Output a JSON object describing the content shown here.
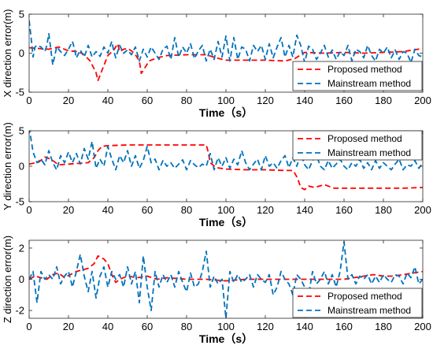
{
  "figure": {
    "colors": {
      "proposed": "#ff0000",
      "mainstream": "#0072bd"
    }
  },
  "chart_data": [
    {
      "type": "line",
      "title": "",
      "xlabel": "Time（s）",
      "ylabel": "X direction error(m)",
      "xlim": [
        0,
        200
      ],
      "ylim": [
        -5,
        5
      ],
      "xticks": [
        0,
        20,
        40,
        60,
        80,
        100,
        120,
        140,
        160,
        180,
        200
      ],
      "yticks": [
        -5,
        0,
        5
      ],
      "legend_location": "bottom-right",
      "series": [
        {
          "name": "Proposed method",
          "x": [
            0,
            5,
            10,
            15,
            20,
            25,
            28,
            31,
            34,
            35,
            37,
            40,
            43,
            45,
            46,
            48,
            50,
            52,
            54,
            56,
            57,
            59,
            61,
            65,
            70,
            80,
            90,
            95,
            100,
            110,
            120,
            130,
            135,
            140,
            150,
            160,
            170,
            180,
            190,
            195,
            200
          ],
          "values": [
            0.7,
            0.6,
            0.5,
            0.8,
            0.3,
            0.2,
            -0.2,
            -1.0,
            -2.5,
            -3.5,
            -2.2,
            -0.3,
            0.4,
            1.2,
            0.2,
            0.5,
            0.6,
            0.3,
            -0.2,
            -1.0,
            -2.6,
            -1.8,
            -1.0,
            -0.6,
            -0.3,
            -0.2,
            -0.2,
            -0.6,
            -0.9,
            -0.9,
            -0.9,
            -1.0,
            -0.7,
            0.1,
            0.0,
            0.1,
            0.0,
            0.1,
            0.2,
            0.4,
            0.6
          ]
        },
        {
          "name": "Mainstream method",
          "x": [
            0,
            1,
            2,
            3,
            4,
            6,
            8,
            9,
            10,
            11,
            12,
            14,
            16,
            18,
            20,
            22,
            23,
            24,
            26,
            28,
            30,
            32,
            34,
            36,
            38,
            40,
            42,
            43,
            44,
            46,
            48,
            50,
            52,
            54,
            56,
            58,
            60,
            62,
            64,
            66,
            68,
            70,
            72,
            74,
            76,
            78,
            80,
            82,
            84,
            86,
            88,
            90,
            92,
            94,
            96,
            98,
            100,
            102,
            104,
            106,
            108,
            110,
            112,
            114,
            116,
            118,
            120,
            122,
            124,
            126,
            128,
            130,
            132,
            134,
            136,
            138,
            140,
            142,
            144,
            146,
            148,
            150,
            152,
            154,
            156,
            158,
            160,
            162,
            164,
            166,
            168,
            170,
            172,
            174,
            176,
            178,
            180,
            182,
            184,
            186,
            188,
            190,
            192,
            194,
            196,
            198,
            200
          ],
          "values": [
            4.2,
            2.0,
            -0.5,
            0.8,
            1.0,
            0.8,
            0.2,
            1.0,
            2.5,
            0.5,
            -1.5,
            0.8,
            0.2,
            -0.3,
            0.5,
            1.5,
            0.6,
            -0.6,
            0.4,
            -0.5,
            1.0,
            -0.5,
            0.2,
            -0.4,
            0.8,
            0.0,
            1.5,
            0.3,
            -0.6,
            1.0,
            0.0,
            0.4,
            -0.2,
            0.8,
            -1.0,
            0.5,
            -0.5,
            0.8,
            0.0,
            -0.8,
            0.5,
            0.9,
            -0.8,
            2.0,
            -0.5,
            0.8,
            0.0,
            1.2,
            -0.7,
            0.3,
            1.0,
            -1.0,
            0.5,
            -0.8,
            1.5,
            -0.5,
            2.2,
            -1.0,
            2.0,
            -0.8,
            0.8,
            0.5,
            -1.0,
            1.0,
            0.2,
            1.0,
            -0.8,
            1.2,
            -0.6,
            0.8,
            2.0,
            -0.5,
            1.0,
            -0.5,
            2.3,
            1.0,
            -1.2,
            0.9,
            0.5,
            -0.8,
            0.0,
            1.0,
            -0.5,
            0.4,
            -0.8,
            0.2,
            -0.3,
            1.0,
            -1.0,
            0.5,
            0.2,
            -0.6,
            1.0,
            -0.3,
            -1.0,
            0.5,
            0.0,
            0.8,
            -0.6,
            0.4,
            -0.8,
            0.2,
            0.0,
            -1.2,
            0.5,
            -0.3,
            -0.5
          ]
        }
      ]
    },
    {
      "type": "line",
      "title": "",
      "xlabel": "Time（s）",
      "ylabel": "Y direction error(m)",
      "xlim": [
        0,
        200
      ],
      "ylim": [
        -5,
        5
      ],
      "xticks": [
        0,
        20,
        40,
        60,
        80,
        100,
        120,
        140,
        160,
        180,
        200
      ],
      "yticks": [
        -5,
        0,
        5
      ],
      "legend_location": "top-right",
      "series": [
        {
          "name": "Proposed method",
          "x": [
            0,
            5,
            8,
            10,
            12,
            15,
            20,
            25,
            30,
            33,
            35,
            37,
            40,
            50,
            60,
            70,
            80,
            88,
            90,
            91,
            92,
            95,
            100,
            110,
            120,
            130,
            134,
            135,
            136,
            137,
            138,
            140,
            142,
            145,
            150,
            152,
            155,
            160,
            170,
            180,
            190,
            200
          ],
          "values": [
            0.3,
            0.6,
            1.3,
            1.1,
            0.8,
            0.2,
            0.3,
            0.4,
            0.5,
            1.2,
            2.2,
            2.8,
            2.9,
            3.0,
            3.0,
            3.0,
            3.0,
            3.0,
            3.0,
            2.0,
            0.5,
            -0.2,
            -0.4,
            -0.5,
            -0.5,
            -0.6,
            -0.6,
            -1.0,
            -1.5,
            -2.2,
            -3.0,
            -3.3,
            -2.8,
            -3.0,
            -2.6,
            -2.8,
            -3.1,
            -3.1,
            -3.1,
            -3.1,
            -3.1,
            -3.0
          ]
        },
        {
          "name": "Mainstream method",
          "x": [
            0,
            2,
            4,
            6,
            8,
            10,
            12,
            14,
            16,
            18,
            20,
            22,
            24,
            26,
            28,
            30,
            32,
            34,
            36,
            38,
            40,
            42,
            44,
            46,
            48,
            50,
            52,
            54,
            56,
            58,
            60,
            62,
            64,
            66,
            68,
            70,
            72,
            74,
            76,
            78,
            80,
            82,
            84,
            86,
            88,
            90,
            92,
            94,
            96,
            98,
            100,
            102,
            104,
            106,
            108,
            110,
            112,
            114,
            116,
            118,
            120,
            122,
            124,
            126,
            128,
            130,
            132,
            134,
            136,
            138,
            140,
            142,
            144,
            146,
            148,
            150,
            152,
            154,
            156,
            158,
            160,
            162,
            164,
            166,
            168,
            170,
            172,
            174,
            176,
            178,
            180,
            182,
            184,
            186,
            188,
            190,
            192,
            194,
            196,
            198,
            200
          ],
          "values": [
            5.5,
            2.0,
            0.5,
            1.0,
            0.2,
            2.2,
            0.5,
            -0.5,
            1.5,
            0.5,
            2.0,
            0.5,
            1.8,
            0.3,
            2.5,
            1.0,
            3.5,
            -0.3,
            1.0,
            0.0,
            2.8,
            1.0,
            -0.5,
            1.5,
            0.5,
            2.2,
            0.0,
            1.5,
            -0.3,
            0.8,
            2.8,
            0.5,
            1.0,
            -0.5,
            0.8,
            0.0,
            0.5,
            -0.3,
            0.3,
            0.9,
            -0.5,
            0.8,
            0.2,
            -0.2,
            0.3,
            0.0,
            1.8,
            -0.5,
            1.2,
            0.0,
            1.2,
            -0.3,
            1.0,
            0.2,
            2.2,
            0.5,
            -0.5,
            0.3,
            1.0,
            -0.5,
            1.5,
            0.0,
            0.5,
            -0.3,
            0.8,
            1.5,
            -0.2,
            1.2,
            0.0,
            1.8,
            0.2,
            -0.5,
            0.8,
            1.5,
            0.0,
            -0.5,
            0.8,
            -0.3,
            0.3,
            1.0,
            0.0,
            -0.5,
            0.5,
            0.0,
            1.0,
            -0.3,
            0.5,
            -0.5,
            0.8,
            -0.3,
            0.5,
            0.0,
            -0.5,
            0.3,
            1.0,
            -0.5,
            0.2,
            0.0,
            0.8,
            -0.3,
            0.5
          ]
        }
      ]
    },
    {
      "type": "line",
      "title": "",
      "xlabel": "Time（s）",
      "ylabel": "Z direction error(m)",
      "xlim": [
        0,
        200
      ],
      "ylim": [
        -2.5,
        2.5
      ],
      "xticks": [
        0,
        20,
        40,
        60,
        80,
        100,
        120,
        140,
        160,
        180,
        200
      ],
      "yticks": [
        -2,
        0,
        2
      ],
      "legend_location": "bottom-right",
      "series": [
        {
          "name": "Proposed method",
          "x": [
            0,
            3,
            6,
            9,
            12,
            15,
            18,
            21,
            24,
            27,
            30,
            33,
            35,
            38,
            40,
            42,
            44,
            46,
            50,
            55,
            60,
            65,
            70,
            80,
            90,
            100,
            110,
            120,
            130,
            140,
            150,
            160,
            165,
            170,
            175,
            180,
            185,
            190,
            195,
            200
          ],
          "values": [
            0.0,
            0.2,
            0.1,
            0.0,
            0.3,
            0.4,
            0.1,
            0.3,
            0.5,
            0.6,
            0.7,
            1.0,
            1.5,
            1.3,
            1.0,
            0.3,
            -0.2,
            0.0,
            0.2,
            0.1,
            0.2,
            0.0,
            0.1,
            0.0,
            0.0,
            -0.1,
            0.0,
            0.0,
            0.0,
            0.0,
            0.0,
            0.0,
            0.1,
            0.2,
            0.3,
            0.2,
            0.2,
            0.3,
            0.4,
            0.5
          ]
        },
        {
          "name": "Mainstream method",
          "x": [
            0,
            2,
            4,
            6,
            8,
            10,
            12,
            14,
            16,
            18,
            20,
            22,
            24,
            26,
            28,
            30,
            32,
            34,
            36,
            38,
            40,
            42,
            44,
            46,
            48,
            50,
            52,
            54,
            56,
            58,
            60,
            62,
            64,
            66,
            68,
            70,
            72,
            74,
            76,
            78,
            80,
            82,
            84,
            86,
            88,
            90,
            92,
            94,
            96,
            98,
            100,
            102,
            104,
            106,
            108,
            110,
            112,
            114,
            116,
            118,
            120,
            122,
            124,
            126,
            128,
            130,
            132,
            134,
            136,
            138,
            140,
            142,
            144,
            146,
            148,
            150,
            152,
            154,
            156,
            158,
            160,
            162,
            164,
            166,
            168,
            170,
            172,
            174,
            176,
            178,
            180,
            182,
            184,
            186,
            188,
            190,
            192,
            194,
            196,
            198,
            200
          ],
          "values": [
            0.0,
            0.5,
            -1.5,
            0.5,
            0.0,
            0.3,
            0.0,
            0.8,
            -0.3,
            0.2,
            0.5,
            -0.5,
            0.5,
            1.6,
            0.2,
            -0.8,
            0.5,
            -1.2,
            0.2,
            0.8,
            -0.5,
            0.5,
            0.0,
            0.3,
            -0.5,
            0.8,
            -0.3,
            0.5,
            -1.5,
            1.5,
            -0.5,
            -2.0,
            0.5,
            -0.5,
            0.3,
            -0.2,
            0.3,
            -0.5,
            0.5,
            -0.2,
            -0.8,
            0.4,
            -0.5,
            -0.3,
            0.5,
            1.8,
            -0.5,
            0.2,
            -0.3,
            0.0,
            -2.5,
            0.5,
            -0.2,
            0.3,
            -0.2,
            0.0,
            0.3,
            -0.5,
            0.3,
            0.0,
            -0.2,
            0.3,
            -1.0,
            -0.5,
            0.5,
            0.0,
            -0.3,
            -1.0,
            0.3,
            0.0,
            -0.5,
            -1.0,
            0.5,
            -0.3,
            0.0,
            0.5,
            -0.3,
            0.3,
            -0.5,
            0.5,
            2.4,
            0.0,
            0.3,
            -0.3,
            0.2,
            0.0,
            0.3,
            -0.3,
            0.2,
            -0.2,
            0.3,
            0.0,
            -0.2,
            0.3,
            0.2,
            -0.3,
            0.4,
            0.1,
            0.8,
            -0.3,
            0.0
          ]
        }
      ]
    }
  ]
}
